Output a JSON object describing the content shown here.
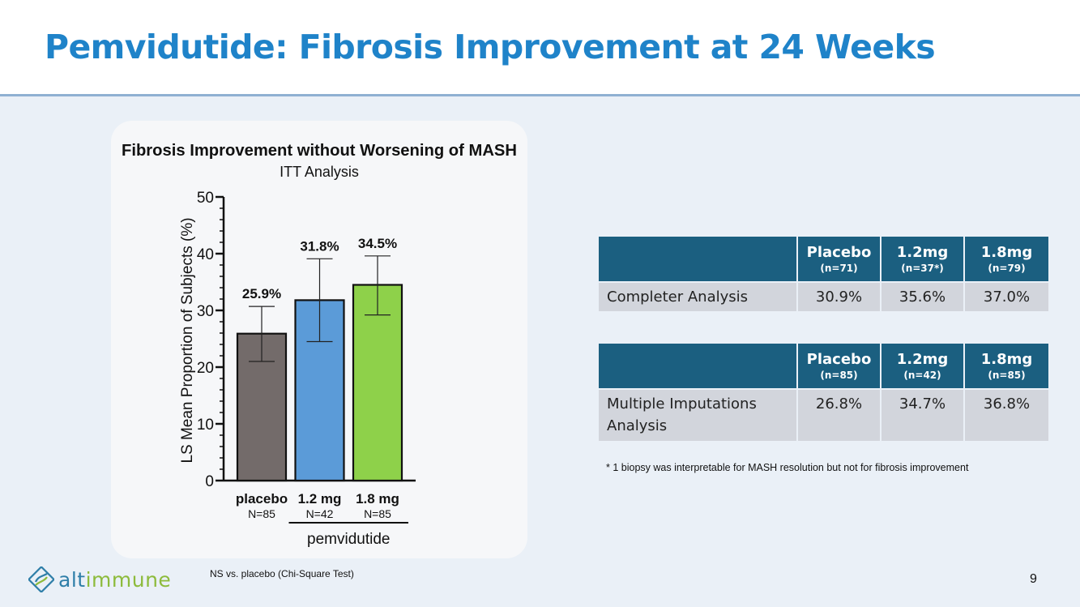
{
  "slide": {
    "title": "Pemvidutide: Fibrosis Improvement at 24 Weeks",
    "page_number": "9",
    "stat_note": "NS vs. placebo (Chi-Square Test)",
    "footnote": "* 1 biopsy was interpretable for MASH resolution but not for fibrosis improvement"
  },
  "logo": {
    "text_part1": "alt",
    "text_part2": "immune",
    "color1": "#2e7ea8",
    "color2": "#8dbb3c"
  },
  "chart_data": {
    "type": "bar",
    "title": "Fibrosis Improvement without Worsening of MASH",
    "subtitle": "ITT Analysis",
    "ylabel": "LS Mean Proportion of Subjects (%)",
    "xlabel": "",
    "ylim": [
      0,
      50
    ],
    "yticks": [
      0,
      10,
      20,
      30,
      40,
      50
    ],
    "categories": [
      "placebo",
      "1.2 mg",
      "1.8 mg"
    ],
    "category_n": [
      "N=85",
      "N=42",
      "N=85"
    ],
    "values": [
      25.9,
      31.8,
      34.5
    ],
    "value_labels": [
      "25.9%",
      "31.8%",
      "34.5%"
    ],
    "error_low": [
      21.0,
      24.5,
      29.2
    ],
    "error_high": [
      30.7,
      39.1,
      39.6
    ],
    "colors": [
      "#736b6a",
      "#5b9bd8",
      "#8ed14a"
    ],
    "group_label": "pemvidutide",
    "grid": false
  },
  "tables": [
    {
      "headers": [
        {
          "main": "Placebo",
          "sub": "(n=71)"
        },
        {
          "main": "1.2mg",
          "sub": "(n=37*)"
        },
        {
          "main": "1.8mg",
          "sub": "(n=79)"
        }
      ],
      "row_label": "Completer Analysis",
      "values": [
        "30.9%",
        "35.6%",
        "37.0%"
      ]
    },
    {
      "headers": [
        {
          "main": "Placebo",
          "sub": "(n=85)"
        },
        {
          "main": "1.2mg",
          "sub": "(n=42)"
        },
        {
          "main": "1.8mg",
          "sub": "(n=85)"
        }
      ],
      "row_label": "Multiple Imputations Analysis",
      "values": [
        "26.8%",
        "34.7%",
        "36.8%"
      ]
    }
  ],
  "colors": {
    "title": "#1f83c9",
    "table_header": "#1b5f80",
    "table_cell": "#d2d5dc",
    "background": "#eaf0f7"
  }
}
